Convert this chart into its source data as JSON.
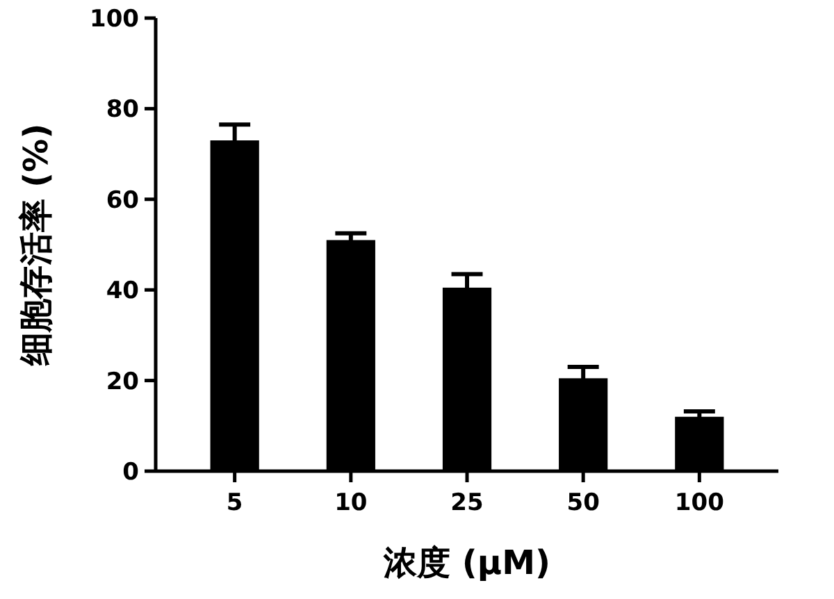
{
  "chart_data": {
    "type": "bar",
    "xlabel": "浓度 (µM)",
    "ylabel": "细胞存活率 (%)",
    "categories": [
      "5",
      "10",
      "25",
      "50",
      "100"
    ],
    "values": [
      73,
      51,
      40.5,
      20.5,
      12
    ],
    "errors": [
      3.5,
      1.5,
      3,
      2.5,
      1.2
    ],
    "color": "#000000",
    "ylim": [
      0,
      100
    ],
    "yticks": [
      0,
      20,
      40,
      60,
      80,
      100
    ],
    "grid": false
  }
}
